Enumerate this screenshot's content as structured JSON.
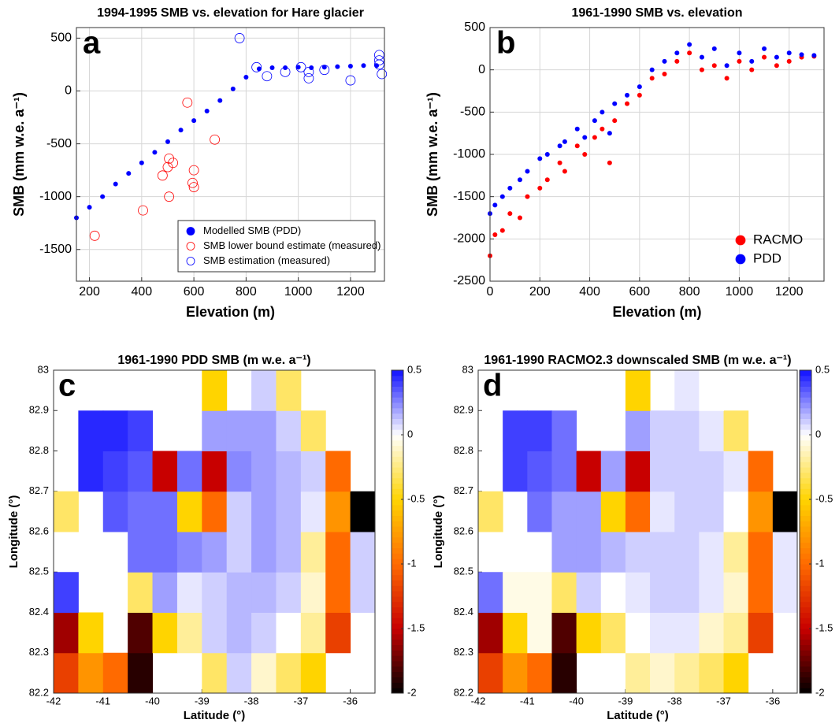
{
  "chart_data": [
    {
      "type": "scatter",
      "panel_label": "a",
      "title": "1994-1995 SMB vs. elevation for Hare glacier",
      "xlabel": "Elevation (m)",
      "ylabel": "SMB (mm w.e. a⁻¹)",
      "xlim": [
        150,
        1330
      ],
      "ylim": [
        -1800,
        600
      ],
      "xticks": [
        200,
        400,
        600,
        800,
        1000,
        1200
      ],
      "yticks": [
        -1500,
        -1000,
        -500,
        0,
        500
      ],
      "grid": true,
      "legend": "lower right",
      "legend_frame": true,
      "series": [
        {
          "name": "Modelled SMB (PDD)",
          "color": "#0000ff",
          "marker": "filled",
          "x": [
            150,
            200,
            250,
            300,
            350,
            400,
            450,
            500,
            550,
            600,
            650,
            700,
            750,
            800,
            850,
            900,
            950,
            1000,
            1050,
            1100,
            1150,
            1200,
            1250,
            1300
          ],
          "values": [
            -1200,
            -1100,
            -1000,
            -880,
            -780,
            -680,
            -580,
            -480,
            -370,
            -280,
            -190,
            -90,
            20,
            130,
            210,
            220,
            220,
            225,
            220,
            225,
            230,
            235,
            240,
            240
          ]
        },
        {
          "name": "SMB lower bound estimate (measured)",
          "color": "#ff0000",
          "marker": "open",
          "x": [
            220,
            405,
            480,
            500,
            505,
            520,
            505,
            575,
            600,
            595,
            600,
            680
          ],
          "values": [
            -1370,
            -1130,
            -800,
            -720,
            -640,
            -680,
            -1000,
            -110,
            -750,
            -870,
            -910,
            -460
          ]
        },
        {
          "name": "SMB estimation (measured)",
          "color": "#0000ff",
          "marker": "open",
          "x": [
            775,
            840,
            880,
            950,
            1010,
            1040,
            1040,
            1100,
            1200,
            1310,
            1310,
            1310,
            1320
          ],
          "values": [
            500,
            225,
            140,
            180,
            225,
            120,
            180,
            200,
            100,
            340,
            290,
            250,
            160
          ]
        }
      ]
    },
    {
      "type": "scatter",
      "panel_label": "b",
      "title": "1961-1990 SMB vs. elevation",
      "xlabel": "Elevation (m)",
      "ylabel": "SMB (mm w.e. a⁻¹)",
      "xlim": [
        0,
        1340
      ],
      "ylim": [
        -2500,
        500
      ],
      "xticks": [
        0,
        200,
        400,
        600,
        800,
        1000,
        1200
      ],
      "yticks": [
        -2500,
        -2000,
        -1500,
        -1000,
        -500,
        0,
        500
      ],
      "grid": true,
      "legend": "lower right",
      "legend_frame": false,
      "series": [
        {
          "name": "RACMO",
          "color": "#ff0000",
          "marker": "filled",
          "x": [
            0,
            20,
            50,
            80,
            120,
            150,
            200,
            230,
            280,
            300,
            350,
            380,
            420,
            450,
            480,
            500,
            550,
            600,
            650,
            700,
            750,
            800,
            850,
            900,
            950,
            1000,
            1050,
            1100,
            1150,
            1200,
            1250,
            1300
          ],
          "values": [
            -2200,
            -1950,
            -1900,
            -1700,
            -1750,
            -1500,
            -1400,
            -1300,
            -1100,
            -1200,
            -900,
            -1000,
            -800,
            -700,
            -1100,
            -600,
            -400,
            -300,
            -100,
            -50,
            100,
            200,
            0,
            50,
            -100,
            100,
            0,
            150,
            50,
            100,
            150,
            160
          ]
        },
        {
          "name": "PDD",
          "color": "#0000ff",
          "marker": "filled",
          "x": [
            0,
            20,
            50,
            80,
            120,
            150,
            200,
            230,
            280,
            300,
            350,
            380,
            420,
            450,
            480,
            500,
            550,
            600,
            650,
            700,
            750,
            800,
            850,
            900,
            950,
            1000,
            1050,
            1100,
            1150,
            1200,
            1250,
            1300
          ],
          "values": [
            -1700,
            -1600,
            -1500,
            -1400,
            -1300,
            -1200,
            -1050,
            -1000,
            -900,
            -850,
            -700,
            -800,
            -600,
            -500,
            -750,
            -400,
            -300,
            -200,
            0,
            100,
            200,
            300,
            150,
            250,
            50,
            200,
            100,
            250,
            150,
            200,
            180,
            170
          ]
        }
      ]
    },
    {
      "type": "heatmap",
      "panel_label": "c",
      "title": "1961-1990 PDD SMB (m w.e. a⁻¹)",
      "xlabel": "Latitude (°)",
      "ylabel": "Longitude (°)",
      "xlim": [
        -42,
        -35.5
      ],
      "ylim": [
        82.2,
        83
      ],
      "xticks": [
        -42,
        -41,
        -40,
        -39,
        -38,
        -37,
        -36
      ],
      "yticks": [
        82.2,
        82.3,
        82.4,
        82.5,
        82.6,
        82.7,
        82.8,
        82.9,
        83
      ],
      "clim": [
        -2,
        0.5
      ],
      "cticks": [
        -2,
        -1.5,
        -1,
        -0.5,
        0,
        0.5
      ],
      "colormap": [
        "#000000",
        "#c80000",
        "#ff6a00",
        "#ffd400",
        "#ffffff",
        "#1010ff"
      ],
      "x": [
        -41.75,
        -41.25,
        -40.75,
        -40.25,
        -39.75,
        -39.25,
        -38.75,
        -38.25,
        -37.75,
        -37.25,
        -36.75,
        -36.25,
        -35.75
      ],
      "y": [
        82.25,
        82.35,
        82.45,
        82.55,
        82.65,
        82.75,
        82.85,
        82.95
      ],
      "z": [
        [
          -1.2,
          -0.8,
          -1.0,
          -1.9,
          null,
          null,
          -0.3,
          0.1,
          -0.1,
          -0.3,
          -0.5,
          null,
          null
        ],
        [
          -1.6,
          -0.5,
          null,
          -1.8,
          -0.5,
          -0.2,
          0.1,
          0.15,
          0.1,
          0.0,
          -0.2,
          -1.2,
          null
        ],
        [
          0.4,
          null,
          null,
          -0.3,
          0.2,
          0.05,
          0.1,
          0.15,
          0.15,
          0.1,
          -0.1,
          -1.0,
          0.1
        ],
        [
          null,
          null,
          null,
          0.3,
          0.3,
          0.25,
          0.2,
          0.1,
          0.2,
          0.15,
          -0.2,
          -1.0,
          0.1
        ],
        [
          -0.3,
          null,
          0.35,
          0.3,
          0.3,
          -0.5,
          -1.0,
          0.1,
          0.2,
          0.15,
          0.05,
          -0.8,
          -2
        ],
        [
          null,
          0.45,
          0.4,
          0.35,
          -1.5,
          0.3,
          -1.5,
          0.25,
          0.2,
          0.15,
          0.1,
          -1.0,
          null
        ],
        [
          null,
          0.45,
          0.45,
          0.4,
          null,
          null,
          0.2,
          0.2,
          0.2,
          0.1,
          -0.3,
          null,
          null
        ],
        [
          null,
          null,
          null,
          null,
          null,
          null,
          -0.5,
          null,
          0.1,
          -0.3,
          null,
          null,
          null
        ]
      ]
    },
    {
      "type": "heatmap",
      "panel_label": "d",
      "title": "1961-1990 RACMO2.3 downscaled SMB (m w.e. a⁻¹)",
      "xlabel": "Latitude (°)",
      "ylabel": "Longitude (°)",
      "xlim": [
        -42,
        -35.5
      ],
      "ylim": [
        82.2,
        83
      ],
      "xticks": [
        -42,
        -41,
        -40,
        -39,
        -38,
        -37,
        -36
      ],
      "yticks": [
        82.2,
        82.3,
        82.4,
        82.5,
        82.6,
        82.7,
        82.8,
        82.9,
        83
      ],
      "clim": [
        -2,
        0.5
      ],
      "cticks": [
        -2,
        -1.5,
        -1,
        -0.5,
        0,
        0.5
      ],
      "colormap": [
        "#000000",
        "#c80000",
        "#ff6a00",
        "#ffd400",
        "#ffffff",
        "#1010ff"
      ],
      "x": [
        -41.75,
        -41.25,
        -40.75,
        -40.25,
        -39.75,
        -39.25,
        -38.75,
        -38.25,
        -37.75,
        -37.25,
        -36.75,
        -36.25,
        -35.75
      ],
      "y": [
        82.25,
        82.35,
        82.45,
        82.55,
        82.65,
        82.75,
        82.85,
        82.95
      ],
      "z": [
        [
          -1.2,
          -0.8,
          -1.0,
          -1.9,
          null,
          null,
          -0.2,
          -0.1,
          -0.2,
          -0.3,
          -0.5,
          null,
          null
        ],
        [
          -1.6,
          -0.5,
          -0.05,
          -1.8,
          -0.5,
          -0.3,
          0.0,
          0.05,
          0.05,
          -0.1,
          -0.2,
          -1.2,
          null
        ],
        [
          0.3,
          -0.05,
          -0.05,
          -0.3,
          0.1,
          0.0,
          0.05,
          0.1,
          0.1,
          0.05,
          -0.1,
          -1.0,
          0.05
        ],
        [
          null,
          null,
          null,
          0.2,
          0.2,
          0.15,
          0.1,
          0.1,
          0.1,
          0.05,
          -0.2,
          -1.0,
          0.05
        ],
        [
          -0.3,
          null,
          0.3,
          0.2,
          0.2,
          -0.5,
          -1.0,
          0.05,
          0.1,
          0.1,
          0.0,
          -0.8,
          -2
        ],
        [
          null,
          0.4,
          0.35,
          0.3,
          -1.5,
          0.2,
          -1.5,
          0.1,
          0.1,
          0.1,
          0.05,
          -1.0,
          null
        ],
        [
          null,
          0.4,
          0.4,
          0.3,
          null,
          null,
          0.2,
          0.1,
          0.1,
          0.05,
          -0.3,
          null,
          null
        ],
        [
          null,
          null,
          null,
          null,
          null,
          null,
          -0.5,
          null,
          0.05,
          0.0,
          null,
          null,
          null
        ]
      ]
    }
  ]
}
